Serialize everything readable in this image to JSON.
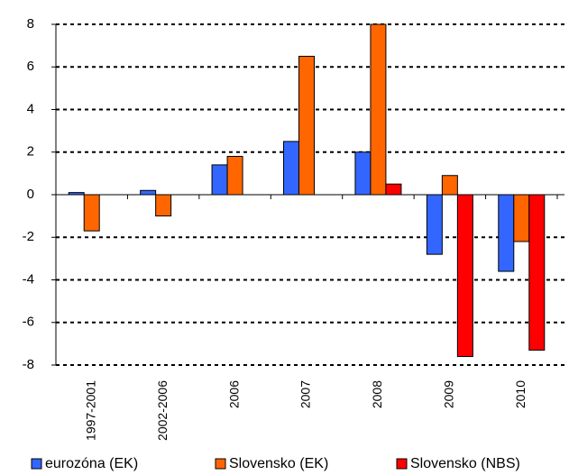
{
  "chart_data": {
    "type": "bar",
    "categories": [
      "1997-2001",
      "2002-2006",
      "2006",
      "2007",
      "2008",
      "2009",
      "2010"
    ],
    "series": [
      {
        "name": "eurozóna (EK)",
        "color": "#3366ff",
        "values": [
          0.1,
          0.2,
          1.4,
          2.5,
          2.0,
          -2.8,
          -3.6
        ]
      },
      {
        "name": "Slovensko (EK)",
        "color": "#ff6600",
        "values": [
          -1.7,
          -1.0,
          1.8,
          6.5,
          8.0,
          0.9,
          -2.2
        ]
      },
      {
        "name": "Slovensko (NBS)",
        "color": "#ff0000",
        "values": [
          null,
          null,
          null,
          null,
          0.5,
          -7.6,
          -7.3
        ]
      }
    ],
    "ylim": [
      -8,
      8
    ],
    "yticks": [
      -8,
      -6,
      -4,
      -2,
      0,
      2,
      4,
      6,
      8
    ],
    "grid": true,
    "legend": "bottom"
  }
}
